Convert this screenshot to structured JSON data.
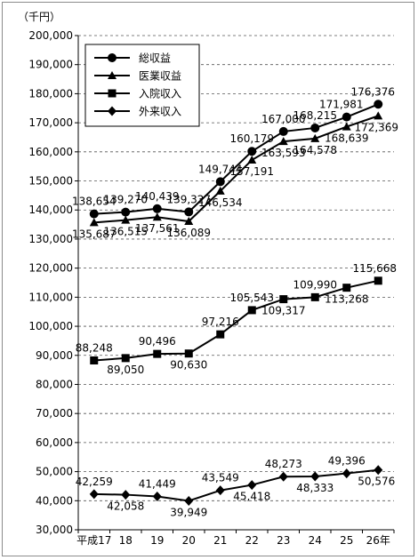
{
  "chart_data": {
    "type": "line",
    "unit_label": "（千円）",
    "x": [
      "平成17",
      "18",
      "19",
      "20",
      "21",
      "22",
      "23",
      "24",
      "25",
      "26年"
    ],
    "ylim": [
      30000,
      200000
    ],
    "yticks": [
      30000,
      40000,
      50000,
      60000,
      70000,
      80000,
      90000,
      100000,
      110000,
      120000,
      130000,
      140000,
      150000,
      160000,
      170000,
      180000,
      190000,
      200000
    ],
    "ytick_labels": [
      "30,000",
      "40,000",
      "50,000",
      "60,000",
      "70,000",
      "80,000",
      "90,000",
      "100,000",
      "110,000",
      "120,000",
      "130,000",
      "140,000",
      "150,000",
      "160,000",
      "170,000",
      "180,000",
      "190,000",
      "200,000"
    ],
    "grid": "horizontal dashed",
    "legend_position": "top-left",
    "series": [
      {
        "name": "総収益",
        "marker": "circle",
        "values": [
          138654,
          139270,
          140439,
          139327,
          149744,
          160179,
          167000,
          168215,
          171981,
          176376
        ],
        "labels": [
          "138,654",
          "139,270",
          "140,439",
          "139,327",
          "149,744",
          "160,179",
          "167,000",
          "168,215",
          "171,981",
          "176,376"
        ]
      },
      {
        "name": "医業収益",
        "marker": "triangle",
        "values": [
          135687,
          136515,
          137561,
          136089,
          146534,
          157191,
          163593,
          164578,
          168639,
          172369
        ],
        "labels": [
          "135,687",
          "136,515",
          "137,561",
          "136,089",
          "146,534",
          "157,191",
          "163,593",
          "164,578",
          "168,639",
          "172,369"
        ]
      },
      {
        "name": "入院収入",
        "marker": "square",
        "values": [
          88248,
          89050,
          90496,
          90630,
          97216,
          105543,
          109317,
          109990,
          113268,
          115668
        ],
        "labels": [
          "88,248",
          "89,050",
          "90,496",
          "90,630",
          "97,216",
          "105,543",
          "109,317",
          "109,990",
          "113,268",
          "115,668"
        ]
      },
      {
        "name": "外来収入",
        "marker": "diamond",
        "values": [
          42259,
          42058,
          41449,
          39949,
          43549,
          45418,
          48273,
          48333,
          49396,
          50576
        ],
        "labels": [
          "42,259",
          "42,058",
          "41,449",
          "39,949",
          "43,549",
          "45,418",
          "48,273",
          "48,333",
          "49,396",
          "50,576"
        ]
      }
    ]
  }
}
